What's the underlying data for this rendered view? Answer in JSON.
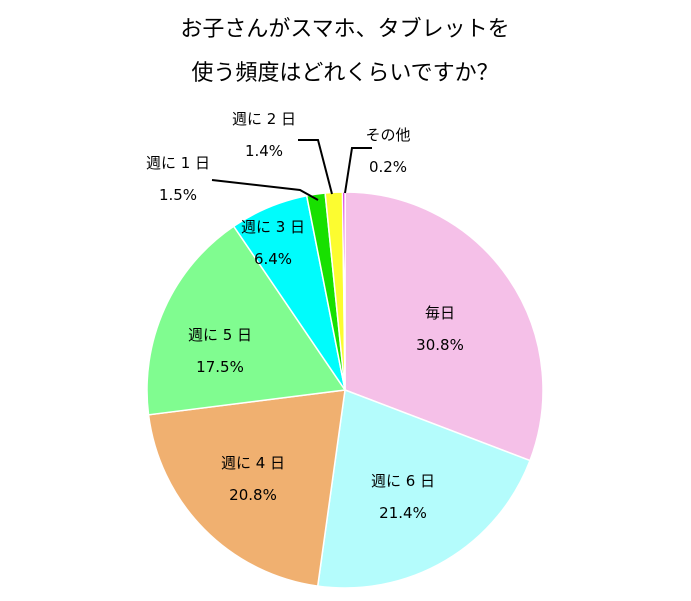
{
  "chart_data": {
    "type": "pie",
    "title": [
      "お子さんがスマホ、タブレットを",
      "使う頻度はどれくらいですか？"
    ],
    "slices": [
      {
        "label": "毎日",
        "value": 30.8,
        "value_label": "30.8%",
        "color": "#f5c0e8"
      },
      {
        "label": "週に 6 日",
        "value": 21.4,
        "value_label": "21.4%",
        "color": "#b4fcfc"
      },
      {
        "label": "週に 4 日",
        "value": 20.8,
        "value_label": "20.8%",
        "color": "#f0b070"
      },
      {
        "label": "週に 5 日",
        "value": 17.5,
        "value_label": "17.5%",
        "color": "#80fc90"
      },
      {
        "label": "週に 3 日",
        "value": 6.4,
        "value_label": "6.4%",
        "color": "#00fcfc"
      },
      {
        "label": "週に 1 日",
        "value": 1.5,
        "value_label": "1.5%",
        "color": "#18e000"
      },
      {
        "label": "週に 2 日",
        "value": 1.4,
        "value_label": "1.4%",
        "color": "#fcfc30"
      },
      {
        "label": "その他",
        "value": 0.2,
        "value_label": "0.2%",
        "color": "#d000d0"
      }
    ],
    "start_direction": "12 o'clock",
    "order": "clockwise"
  }
}
